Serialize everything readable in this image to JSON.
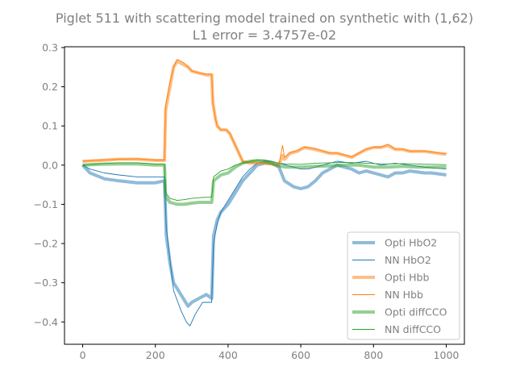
{
  "chart_data": {
    "type": "line",
    "title": "Piglet 511 with scattering model trained on synthetic with (1,62)",
    "subtitle": "L1 error = 3.4757e-02",
    "xlabel": "",
    "ylabel": "",
    "xlim": [
      -50,
      1050
    ],
    "ylim": [
      -0.457,
      0.302
    ],
    "x_ticks": [
      0,
      200,
      400,
      600,
      800,
      1000
    ],
    "x_tick_labels": [
      "0",
      "200",
      "400",
      "600",
      "800",
      "1000"
    ],
    "y_ticks": [
      0.3,
      0.2,
      0.1,
      0.0,
      -0.1,
      -0.2,
      -0.3,
      -0.4
    ],
    "y_tick_labels": [
      "0.3",
      "0.2",
      "0.1",
      "0.0",
      "−0.1",
      "−0.2",
      "−0.3",
      "−0.4"
    ],
    "grid": false,
    "legend_position": "lower-right",
    "series": [
      {
        "name": "Opti HbO2",
        "color": "#1f77b4",
        "style": "thick",
        "points": [
          [
            0,
            0
          ],
          [
            20,
            -0.02
          ],
          [
            60,
            -0.035
          ],
          [
            100,
            -0.04
          ],
          [
            150,
            -0.045
          ],
          [
            200,
            -0.045
          ],
          [
            225,
            -0.04
          ],
          [
            230,
            -0.18
          ],
          [
            240,
            -0.25
          ],
          [
            250,
            -0.3
          ],
          [
            270,
            -0.33
          ],
          [
            290,
            -0.36
          ],
          [
            300,
            -0.35
          ],
          [
            320,
            -0.34
          ],
          [
            340,
            -0.33
          ],
          [
            355,
            -0.34
          ],
          [
            360,
            -0.18
          ],
          [
            370,
            -0.14
          ],
          [
            380,
            -0.12
          ],
          [
            400,
            -0.1
          ],
          [
            420,
            -0.07
          ],
          [
            440,
            -0.04
          ],
          [
            460,
            -0.02
          ],
          [
            480,
            0.0
          ],
          [
            500,
            0.005
          ],
          [
            520,
            0.005
          ],
          [
            540,
            -0.005
          ],
          [
            555,
            -0.04
          ],
          [
            580,
            -0.055
          ],
          [
            600,
            -0.06
          ],
          [
            620,
            -0.055
          ],
          [
            640,
            -0.04
          ],
          [
            660,
            -0.02
          ],
          [
            680,
            -0.01
          ],
          [
            700,
            0.0
          ],
          [
            720,
            -0.005
          ],
          [
            740,
            -0.01
          ],
          [
            760,
            -0.02
          ],
          [
            780,
            -0.015
          ],
          [
            800,
            -0.02
          ],
          [
            820,
            -0.025
          ],
          [
            840,
            -0.03
          ],
          [
            860,
            -0.02
          ],
          [
            880,
            -0.02
          ],
          [
            900,
            -0.015
          ],
          [
            940,
            -0.02
          ],
          [
            960,
            -0.02
          ],
          [
            1000,
            -0.025
          ]
        ]
      },
      {
        "name": "NN HbO2",
        "color": "#1f77b4",
        "style": "thin",
        "points": [
          [
            0,
            0
          ],
          [
            20,
            -0.01
          ],
          [
            60,
            -0.02
          ],
          [
            100,
            -0.025
          ],
          [
            150,
            -0.03
          ],
          [
            200,
            -0.03
          ],
          [
            225,
            -0.03
          ],
          [
            230,
            -0.16
          ],
          [
            240,
            -0.24
          ],
          [
            250,
            -0.32
          ],
          [
            270,
            -0.37
          ],
          [
            285,
            -0.4
          ],
          [
            295,
            -0.41
          ],
          [
            310,
            -0.38
          ],
          [
            330,
            -0.35
          ],
          [
            355,
            -0.35
          ],
          [
            360,
            -0.2
          ],
          [
            370,
            -0.15
          ],
          [
            380,
            -0.12
          ],
          [
            400,
            -0.09
          ],
          [
            420,
            -0.06
          ],
          [
            440,
            -0.03
          ],
          [
            460,
            -0.01
          ],
          [
            480,
            0.005
          ],
          [
            500,
            0.01
          ],
          [
            520,
            0.01
          ],
          [
            540,
            0.005
          ],
          [
            560,
            0.0
          ],
          [
            580,
            -0.005
          ],
          [
            600,
            -0.01
          ],
          [
            620,
            -0.01
          ],
          [
            640,
            -0.005
          ],
          [
            660,
            0.0
          ],
          [
            680,
            0.005
          ],
          [
            700,
            0.01
          ],
          [
            740,
            0.005
          ],
          [
            780,
            0.01
          ],
          [
            820,
            0.0
          ],
          [
            860,
            0.005
          ],
          [
            900,
            0.0
          ],
          [
            940,
            -0.005
          ],
          [
            1000,
            -0.01
          ]
        ]
      },
      {
        "name": "Opti Hbb",
        "color": "#ff7f0e",
        "style": "thick",
        "points": [
          [
            0,
            0.01
          ],
          [
            50,
            0.012
          ],
          [
            100,
            0.015
          ],
          [
            150,
            0.015
          ],
          [
            200,
            0.012
          ],
          [
            225,
            0.012
          ],
          [
            228,
            0.14
          ],
          [
            240,
            0.2
          ],
          [
            250,
            0.25
          ],
          [
            260,
            0.265
          ],
          [
            270,
            0.26
          ],
          [
            280,
            0.255
          ],
          [
            290,
            0.25
          ],
          [
            300,
            0.24
          ],
          [
            320,
            0.235
          ],
          [
            340,
            0.23
          ],
          [
            355,
            0.23
          ],
          [
            358,
            0.16
          ],
          [
            365,
            0.12
          ],
          [
            370,
            0.1
          ],
          [
            380,
            0.09
          ],
          [
            395,
            0.09
          ],
          [
            405,
            0.08
          ],
          [
            420,
            0.05
          ],
          [
            430,
            0.03
          ],
          [
            440,
            0.01
          ],
          [
            460,
            0.005
          ],
          [
            500,
            0.005
          ],
          [
            540,
            0.0
          ],
          [
            550,
            0.025
          ],
          [
            555,
            0.015
          ],
          [
            570,
            0.03
          ],
          [
            590,
            0.035
          ],
          [
            610,
            0.045
          ],
          [
            640,
            0.04
          ],
          [
            660,
            0.035
          ],
          [
            680,
            0.03
          ],
          [
            700,
            0.03
          ],
          [
            720,
            0.025
          ],
          [
            740,
            0.02
          ],
          [
            760,
            0.03
          ],
          [
            780,
            0.04
          ],
          [
            800,
            0.045
          ],
          [
            820,
            0.045
          ],
          [
            840,
            0.05
          ],
          [
            860,
            0.04
          ],
          [
            880,
            0.04
          ],
          [
            900,
            0.035
          ],
          [
            940,
            0.035
          ],
          [
            980,
            0.03
          ],
          [
            1000,
            0.028
          ]
        ]
      },
      {
        "name": "NN Hbb",
        "color": "#ff7f0e",
        "style": "thin",
        "points": [
          [
            0,
            0.01
          ],
          [
            50,
            0.013
          ],
          [
            100,
            0.015
          ],
          [
            150,
            0.016
          ],
          [
            200,
            0.013
          ],
          [
            225,
            0.013
          ],
          [
            228,
            0.15
          ],
          [
            240,
            0.21
          ],
          [
            250,
            0.25
          ],
          [
            260,
            0.27
          ],
          [
            270,
            0.265
          ],
          [
            280,
            0.26
          ],
          [
            290,
            0.25
          ],
          [
            300,
            0.24
          ],
          [
            320,
            0.235
          ],
          [
            340,
            0.232
          ],
          [
            355,
            0.232
          ],
          [
            358,
            0.16
          ],
          [
            365,
            0.12
          ],
          [
            370,
            0.1
          ],
          [
            380,
            0.09
          ],
          [
            395,
            0.09
          ],
          [
            405,
            0.08
          ],
          [
            420,
            0.05
          ],
          [
            430,
            0.03
          ],
          [
            440,
            0.01
          ],
          [
            460,
            0.006
          ],
          [
            500,
            0.006
          ],
          [
            540,
            0.002
          ],
          [
            550,
            0.05
          ],
          [
            555,
            0.02
          ],
          [
            570,
            0.032
          ],
          [
            590,
            0.037
          ],
          [
            610,
            0.046
          ],
          [
            640,
            0.042
          ],
          [
            660,
            0.036
          ],
          [
            680,
            0.031
          ],
          [
            700,
            0.031
          ],
          [
            720,
            0.026
          ],
          [
            740,
            0.021
          ],
          [
            760,
            0.031
          ],
          [
            780,
            0.041
          ],
          [
            800,
            0.046
          ],
          [
            820,
            0.046
          ],
          [
            840,
            0.053
          ],
          [
            860,
            0.041
          ],
          [
            880,
            0.041
          ],
          [
            900,
            0.036
          ],
          [
            940,
            0.036
          ],
          [
            980,
            0.031
          ],
          [
            1000,
            0.029
          ]
        ]
      },
      {
        "name": "Opti diffCCO",
        "color": "#2ca02c",
        "style": "thick",
        "points": [
          [
            0,
            0.0
          ],
          [
            50,
            0.002
          ],
          [
            100,
            0.003
          ],
          [
            150,
            0.003
          ],
          [
            200,
            0.0
          ],
          [
            225,
            0.0
          ],
          [
            228,
            -0.08
          ],
          [
            240,
            -0.095
          ],
          [
            260,
            -0.1
          ],
          [
            280,
            -0.1
          ],
          [
            300,
            -0.097
          ],
          [
            320,
            -0.095
          ],
          [
            340,
            -0.095
          ],
          [
            355,
            -0.095
          ],
          [
            360,
            -0.04
          ],
          [
            380,
            -0.025
          ],
          [
            400,
            -0.02
          ],
          [
            420,
            -0.005
          ],
          [
            440,
            0.005
          ],
          [
            460,
            0.01
          ],
          [
            480,
            0.012
          ],
          [
            500,
            0.01
          ],
          [
            520,
            0.005
          ],
          [
            540,
            -0.002
          ],
          [
            560,
            -0.005
          ],
          [
            600,
            -0.005
          ],
          [
            640,
            -0.003
          ],
          [
            680,
            -0.002
          ],
          [
            720,
            0.0
          ],
          [
            760,
            0.0
          ],
          [
            800,
            -0.005
          ],
          [
            840,
            -0.005
          ],
          [
            880,
            -0.003
          ],
          [
            920,
            -0.005
          ],
          [
            960,
            -0.005
          ],
          [
            1000,
            -0.005
          ]
        ]
      },
      {
        "name": "NN diffCCO",
        "color": "#2ca02c",
        "style": "thin",
        "points": [
          [
            0,
            0.0
          ],
          [
            50,
            0.004
          ],
          [
            100,
            0.006
          ],
          [
            150,
            0.006
          ],
          [
            200,
            0.003
          ],
          [
            225,
            0.003
          ],
          [
            228,
            -0.07
          ],
          [
            240,
            -0.085
          ],
          [
            260,
            -0.09
          ],
          [
            280,
            -0.088
          ],
          [
            300,
            -0.085
          ],
          [
            320,
            -0.083
          ],
          [
            340,
            -0.082
          ],
          [
            355,
            -0.082
          ],
          [
            360,
            -0.03
          ],
          [
            380,
            -0.015
          ],
          [
            400,
            -0.01
          ],
          [
            420,
            0.0
          ],
          [
            440,
            0.005
          ],
          [
            460,
            0.01
          ],
          [
            480,
            0.012
          ],
          [
            500,
            0.013
          ],
          [
            520,
            0.01
          ],
          [
            540,
            0.005
          ],
          [
            560,
            0.003
          ],
          [
            600,
            0.002
          ],
          [
            640,
            0.005
          ],
          [
            680,
            0.006
          ],
          [
            720,
            0.007
          ],
          [
            760,
            0.006
          ],
          [
            800,
            0.004
          ],
          [
            840,
            0.003
          ],
          [
            880,
            0.004
          ],
          [
            920,
            0.003
          ],
          [
            960,
            0.002
          ],
          [
            1000,
            0.001
          ]
        ]
      }
    ]
  }
}
